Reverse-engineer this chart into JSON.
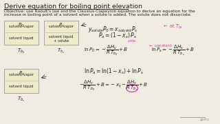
{
  "background_color": "#f0ece0",
  "title": "Derive equation for boiling point elevation",
  "objective_line1": "Objective: use Raoult's law and the Clausius-Clapeyron equation to derive an equation for the",
  "objective_line2": "increase in boiling point of a solvent when a solute is added. The solute does not dissociate.",
  "text_color": "#222222",
  "title_color": "#111111",
  "box_facecolor": "#eeeacc",
  "box_edgecolor": "#999999",
  "pink_color": "#cc44aa",
  "gray_color": "#888888",
  "dpi": 100,
  "figw": 3.2,
  "figh": 1.8
}
